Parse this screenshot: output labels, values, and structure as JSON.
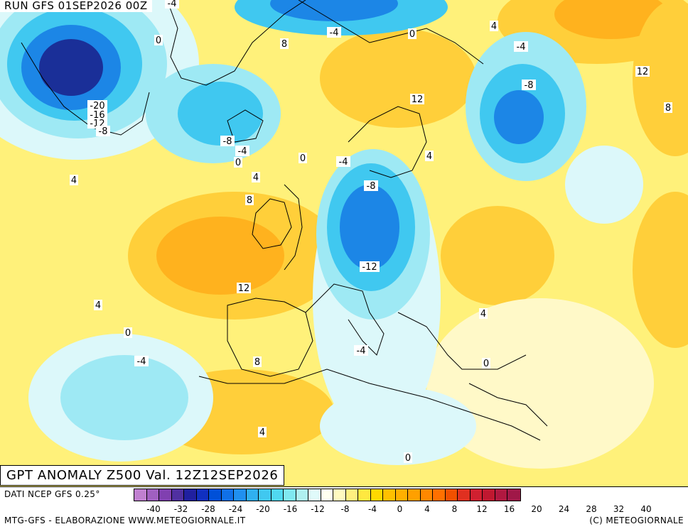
{
  "header": {
    "run_label": "RUN GFS 01SEP2026 00Z",
    "title": "GPT ANOMALY Z500 Val. 12Z12SEP2026"
  },
  "footer": {
    "data_source": "DATI NCEP GFS 0.25°",
    "elaboration": "MTG-GFS - ELABORAZIONE WWW.METEOGIORNALE.IT",
    "copyright": "(C) METEOGIORNALE"
  },
  "legend": {
    "tick_labels": [
      "-40",
      "-32",
      "-28",
      "-24",
      "-20",
      "-16",
      "-12",
      "-8",
      "-4",
      "0",
      "4",
      "8",
      "12",
      "16",
      "20",
      "24",
      "28",
      "32",
      "40"
    ],
    "colors": [
      "#c080d0",
      "#a060c0",
      "#8040b0",
      "#5030a0",
      "#2020a0",
      "#1030c0",
      "#0050d8",
      "#1070e8",
      "#2090f0",
      "#30b0f0",
      "#40c8f0",
      "#50d8f0",
      "#80e8f0",
      "#b0f0f0",
      "#e0fafa",
      "#fffff0",
      "#fffac0",
      "#fff080",
      "#ffe840",
      "#ffd800",
      "#ffc000",
      "#ffb000",
      "#ffa000",
      "#ff8800",
      "#ff7000",
      "#f05000",
      "#e03020",
      "#d02030",
      "#c01830",
      "#b01840",
      "#a01848"
    ]
  },
  "map": {
    "palette": {
      "ocean_yellow": "#fff17a",
      "warm_orange": "#ffcf3a",
      "deep_orange": "#ffb21e",
      "pale_yellow": "#fff9c8",
      "pale_cyan": "#dcf8fa",
      "light_cyan": "#9ee9f4",
      "cyan": "#40c8f0",
      "blue": "#1c86e6",
      "deep_blue": "#0a3fb8",
      "navy": "#1a2f98"
    },
    "contour_labels": [
      "-4",
      "0",
      "-4",
      "8",
      "0",
      "4",
      "-4",
      "-8",
      "-20",
      "-16",
      "-12",
      "-8",
      "12",
      "12",
      "8",
      "-8",
      "-4",
      "0",
      "0",
      "-4",
      "4",
      "4",
      "-8",
      "4",
      "8",
      "-12",
      "12",
      "4",
      "4",
      "0",
      "-4",
      "0",
      "-4",
      "8",
      "4",
      "0"
    ]
  }
}
